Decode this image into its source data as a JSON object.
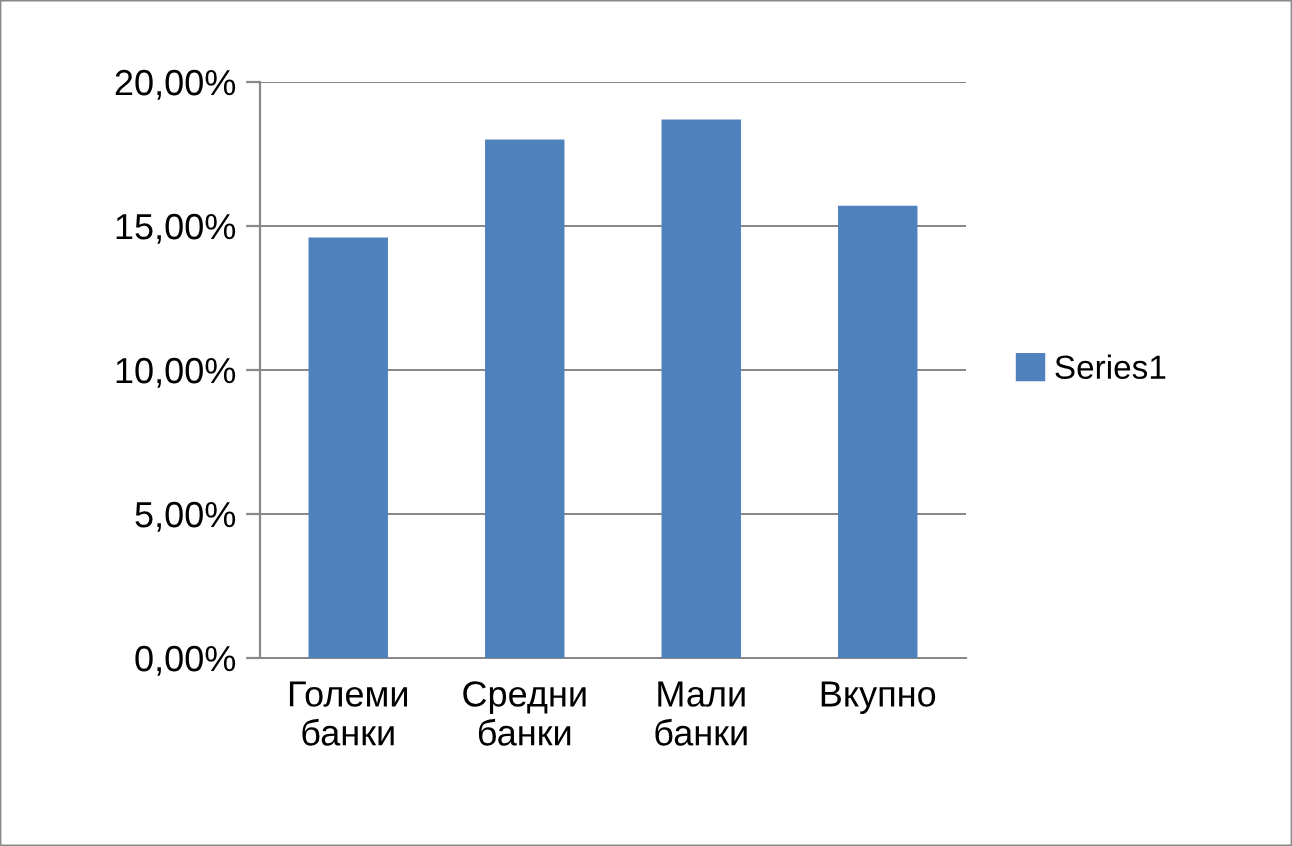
{
  "chart_data": {
    "type": "bar",
    "categories": [
      "Големи банки",
      "Средни банки",
      "Мали банки",
      "Вкупно"
    ],
    "series": [
      {
        "name": "Series1",
        "color": "#4f81bd",
        "values": [
          14.6,
          18.0,
          18.7,
          15.7
        ]
      }
    ],
    "ylim": [
      0,
      20
    ],
    "yticks": [
      {
        "value": 0,
        "label": "0,00%"
      },
      {
        "value": 5,
        "label": "5,00%"
      },
      {
        "value": 10,
        "label": "10,00%"
      },
      {
        "value": 15,
        "label": "15,00%"
      },
      {
        "value": 20,
        "label": "20,00%"
      }
    ],
    "grid": "y",
    "legend": "right"
  }
}
